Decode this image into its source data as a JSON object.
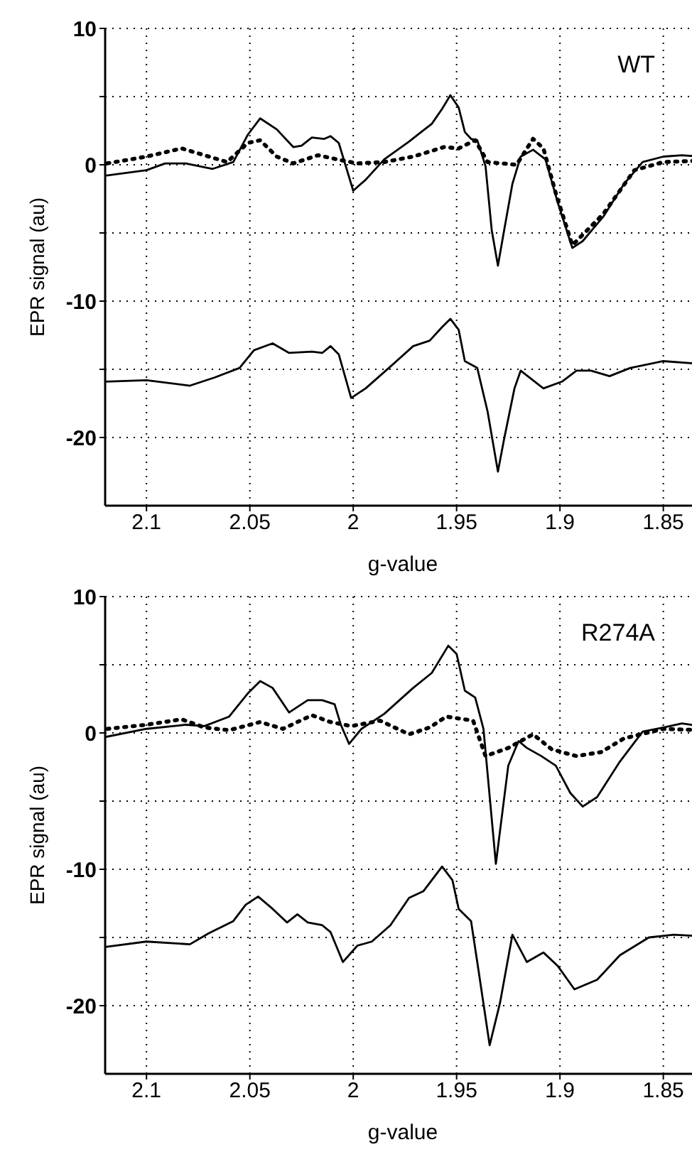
{
  "chart_data": [
    {
      "type": "line",
      "xlabel": "g-value",
      "ylabel": "EPR signal (au)",
      "annotations": [
        "WT"
      ],
      "grid": true,
      "xlim": [
        2.12,
        1.832
      ],
      "xticks": [
        2.1,
        2.05,
        2,
        1.95,
        1.9,
        1.85
      ],
      "ylim": [
        -25,
        10
      ],
      "yticks": [
        -20,
        {
          "value": -15,
          "label": null
        },
        -10,
        {
          "value": -5,
          "label": null
        },
        0,
        {
          "value": 5,
          "label": null
        },
        10
      ],
      "series": [
        {
          "color": "#000000",
          "line_style": "solid",
          "x": [
            2.12,
            2.1,
            2.091,
            2.081,
            2.068,
            2.058,
            2.051,
            2.045,
            2.037,
            2.029,
            2.025,
            2.02,
            2.014,
            2.011,
            2.007,
            2.0,
            1.994,
            1.985,
            1.973,
            1.968,
            1.962,
            1.957,
            1.953,
            1.949,
            1.946,
            1.943,
            1.94,
            1.936,
            1.933,
            1.93,
            1.927,
            1.923,
            1.919,
            1.913,
            1.907,
            1.901,
            1.894,
            1.889,
            1.879,
            1.869,
            1.86,
            1.85,
            1.841,
            1.832
          ],
          "values": [
            -0.8,
            -0.4,
            0.1,
            0.1,
            -0.3,
            0.2,
            2.2,
            3.4,
            2.6,
            1.3,
            1.4,
            2.0,
            1.9,
            2.1,
            1.6,
            -1.9,
            -1.1,
            0.4,
            1.7,
            2.3,
            3.0,
            4.1,
            5.1,
            4.2,
            2.4,
            1.9,
            1.8,
            -0.1,
            -4.8,
            -7.4,
            -4.8,
            -1.4,
            0.6,
            1.1,
            0.4,
            -2.8,
            -6.1,
            -5.6,
            -3.8,
            -1.4,
            0.2,
            0.6,
            0.7,
            0.6
          ]
        },
        {
          "color": "#000000",
          "line_style": "dotted",
          "x": [
            2.119,
            2.1,
            2.083,
            2.072,
            2.061,
            2.051,
            2.045,
            2.037,
            2.029,
            2.017,
            2.008,
            1.998,
            1.985,
            1.971,
            1.956,
            1.949,
            1.941,
            1.935,
            1.921,
            1.913,
            1.908,
            1.902,
            1.894,
            1.879,
            1.864,
            1.85,
            1.832
          ],
          "values": [
            0.1,
            0.6,
            1.2,
            0.7,
            0.2,
            1.6,
            1.8,
            0.6,
            0.1,
            0.7,
            0.4,
            0.1,
            0.2,
            0.6,
            1.3,
            1.2,
            1.8,
            0.2,
            0.0,
            1.9,
            1.2,
            -2.1,
            -5.9,
            -3.6,
            -0.4,
            0.2,
            0.3
          ]
        },
        {
          "color": "#000000",
          "line_style": "solid",
          "x": [
            2.12,
            2.1,
            2.079,
            2.067,
            2.055,
            2.048,
            2.039,
            2.031,
            2.02,
            2.015,
            2.011,
            2.007,
            2.001,
            1.994,
            1.982,
            1.971,
            1.963,
            1.957,
            1.953,
            1.949,
            1.946,
            1.94,
            1.935,
            1.93,
            1.927,
            1.922,
            1.919,
            1.908,
            1.899,
            1.892,
            1.885,
            1.876,
            1.866,
            1.85,
            1.832
          ],
          "values": [
            -15.9,
            -15.8,
            -16.2,
            -15.6,
            -14.9,
            -13.6,
            -13.1,
            -13.8,
            -13.7,
            -13.8,
            -13.3,
            -13.9,
            -17.1,
            -16.4,
            -14.8,
            -13.3,
            -12.9,
            -11.9,
            -11.3,
            -12.1,
            -14.4,
            -14.9,
            -18.1,
            -22.5,
            -20.1,
            -16.4,
            -15.1,
            -16.4,
            -15.9,
            -15.1,
            -15.1,
            -15.5,
            -14.9,
            -14.4,
            -14.6
          ]
        }
      ]
    },
    {
      "type": "line",
      "xlabel": "g-value",
      "ylabel": "EPR signal (au)",
      "annotations": [
        "R274A"
      ],
      "grid": true,
      "xlim": [
        2.12,
        1.832
      ],
      "xticks": [
        2.1,
        2.05,
        2,
        1.95,
        1.9,
        1.85
      ],
      "ylim": [
        -25,
        10
      ],
      "yticks": [
        -20,
        {
          "value": -15,
          "label": null
        },
        -10,
        {
          "value": -5,
          "label": null
        },
        0,
        {
          "value": 5,
          "label": null
        },
        10
      ],
      "series": [
        {
          "color": "#000000",
          "line_style": "solid",
          "x": [
            2.12,
            2.1,
            2.081,
            2.072,
            2.06,
            2.051,
            2.045,
            2.039,
            2.031,
            2.022,
            2.015,
            2.009,
            2.006,
            2.002,
            1.996,
            1.985,
            1.971,
            1.962,
            1.954,
            1.95,
            1.946,
            1.941,
            1.937,
            1.931,
            1.925,
            1.92,
            1.916,
            1.909,
            1.902,
            1.895,
            1.889,
            1.882,
            1.871,
            1.86,
            1.85,
            1.841,
            1.832
          ],
          "values": [
            -0.3,
            0.3,
            0.6,
            0.5,
            1.2,
            2.9,
            3.8,
            3.3,
            1.5,
            2.4,
            2.4,
            2.1,
            0.6,
            -0.8,
            0.3,
            1.4,
            3.3,
            4.4,
            6.4,
            5.8,
            3.1,
            2.6,
            0.3,
            -9.6,
            -2.4,
            -0.6,
            -1.1,
            -1.7,
            -2.4,
            -4.4,
            -5.4,
            -4.7,
            -2.1,
            0.1,
            0.4,
            0.7,
            0.5
          ]
        },
        {
          "color": "#000000",
          "line_style": "dotted",
          "x": [
            2.119,
            2.1,
            2.083,
            2.072,
            2.06,
            2.045,
            2.034,
            2.02,
            2.011,
            2.001,
            1.987,
            1.973,
            1.963,
            1.955,
            1.942,
            1.936,
            1.925,
            1.913,
            1.904,
            1.892,
            1.88,
            1.869,
            1.85,
            1.832
          ],
          "values": [
            0.3,
            0.6,
            1.0,
            0.4,
            0.2,
            0.8,
            0.3,
            1.3,
            0.8,
            0.5,
            0.9,
            -0.1,
            0.4,
            1.2,
            0.9,
            -1.7,
            -1.1,
            -0.1,
            -1.2,
            -1.7,
            -1.4,
            -0.4,
            0.3,
            0.2
          ]
        },
        {
          "color": "#000000",
          "line_style": "solid",
          "x": [
            2.12,
            2.1,
            2.079,
            2.07,
            2.058,
            2.052,
            2.046,
            2.039,
            2.032,
            2.027,
            2.022,
            2.015,
            2.011,
            2.005,
            1.998,
            1.991,
            1.982,
            1.973,
            1.966,
            1.957,
            1.952,
            1.949,
            1.943,
            1.94,
            1.934,
            1.929,
            1.923,
            1.916,
            1.908,
            1.901,
            1.893,
            1.882,
            1.871,
            1.857,
            1.845,
            1.832
          ],
          "values": [
            -15.7,
            -15.3,
            -15.5,
            -14.7,
            -13.8,
            -12.6,
            -12.0,
            -12.9,
            -13.9,
            -13.3,
            -13.9,
            -14.1,
            -14.6,
            -16.8,
            -15.6,
            -15.3,
            -14.1,
            -12.1,
            -11.6,
            -9.8,
            -10.8,
            -12.9,
            -13.8,
            -16.8,
            -22.9,
            -19.8,
            -14.8,
            -16.8,
            -16.1,
            -17.1,
            -18.8,
            -18.1,
            -16.3,
            -15.0,
            -14.8,
            -14.9
          ]
        }
      ]
    }
  ]
}
